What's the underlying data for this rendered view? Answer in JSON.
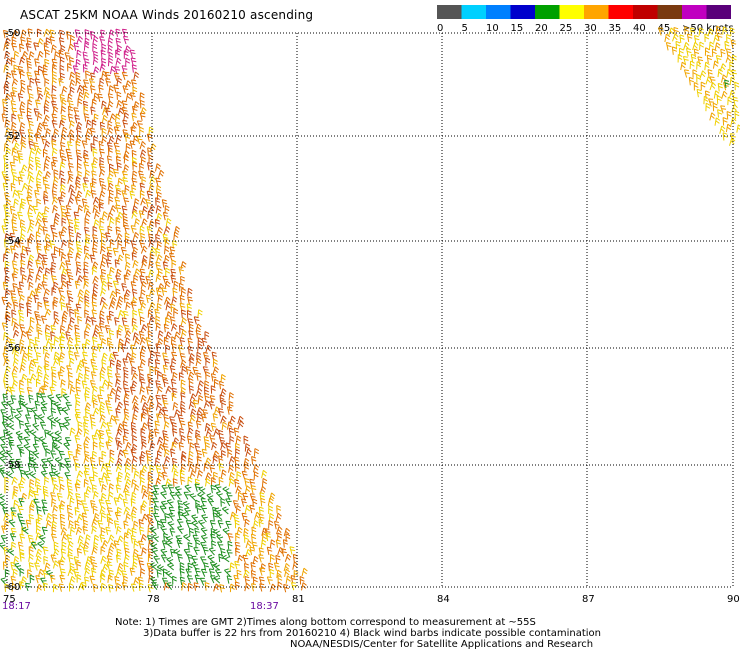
{
  "title": "ASCAT 25KM NOAA Winds 20160210 ascending",
  "legend": {
    "labels": [
      "0",
      "5",
      "10",
      "15",
      "20",
      "25",
      "30",
      "35",
      "40",
      "45",
      ">50 knots"
    ],
    "colors": [
      "#555555",
      "#00d0ff",
      "#0080ff",
      "#0000cc",
      "#00a000",
      "#ffff00",
      "#ffa500",
      "#ff0000",
      "#c00000",
      "#7a3a10",
      "#c000c0",
      "#5a007a"
    ]
  },
  "axes": {
    "lat_labels": [
      "-50",
      "-52",
      "-54",
      "-56",
      "-58",
      "-60"
    ],
    "lon_labels": [
      "75",
      "78",
      "81",
      "84",
      "87",
      "90"
    ]
  },
  "time_labels": [
    "18:17",
    "18:37"
  ],
  "notes": [
    "Note: 1) Times are GMT 2)Times along bottom correspond to measurement at ~55S",
    "3)Data buffer is 22 hrs from 20160210 4) Black wind barbs indicate possible contamination",
    "NOAA/NESDIS/Center for Satellite Applications and Research"
  ],
  "barb_colors": {
    "green": "#1f8f1f",
    "yellow": "#f0d000",
    "lightorange": "#f0a400",
    "orange": "#e07000",
    "darkorange": "#c84e10",
    "magenta": "#d0208a"
  }
}
